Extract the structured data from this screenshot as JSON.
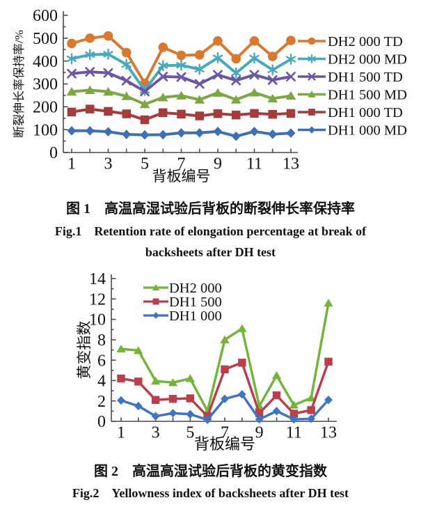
{
  "page": {
    "background": "#ffffff",
    "axis_color": "#4a4a4a",
    "text_color": "#111111"
  },
  "captions": {
    "fig1_zh": "图 1　高温高湿试验后背板的断裂伸长率保持率",
    "fig1_en1": "Fig.1　Retention rate of elongation percentage at break of",
    "fig1_en2": "backsheets after DH test",
    "fig2_zh": "图 2　高温高湿试验后背板的黄变指数",
    "fig2_en": "Fig.2　Yellowness index of backsheets after DH test"
  },
  "chart_data": [
    {
      "type": "line",
      "title": "",
      "xlabel": "背板编号",
      "ylabel": "断裂伸长率保持率/%",
      "x": [
        1,
        2,
        3,
        4,
        5,
        6,
        7,
        8,
        9,
        10,
        11,
        12,
        13
      ],
      "xtick_labels": [
        1,
        3,
        5,
        7,
        9,
        11,
        13
      ],
      "ylim": [
        0,
        600
      ],
      "yticks": [
        0,
        100,
        200,
        300,
        400,
        500,
        600
      ],
      "y_minor_step": 50,
      "grid": false,
      "legend_position": "right-outside",
      "series": [
        {
          "name": "DH2 000 TD",
          "color": "#D9782F",
          "marker": "circle",
          "values": [
            477,
            500,
            510,
            437,
            303,
            460,
            425,
            427,
            488,
            410,
            488,
            420,
            490
          ]
        },
        {
          "name": "DH2 000 MD",
          "color": "#4AA9B9",
          "marker": "asterisk",
          "values": [
            410,
            428,
            430,
            385,
            272,
            380,
            382,
            364,
            414,
            348,
            413,
            361,
            408
          ]
        },
        {
          "name": "DH1 500 TD",
          "color": "#6C55A3",
          "marker": "x",
          "values": [
            345,
            353,
            348,
            314,
            267,
            332,
            330,
            300,
            340,
            315,
            340,
            317,
            332
          ]
        },
        {
          "name": "DH1 500 MD",
          "color": "#7BA844",
          "marker": "triangle",
          "values": [
            266,
            273,
            266,
            246,
            211,
            241,
            249,
            231,
            261,
            231,
            262,
            236,
            248
          ]
        },
        {
          "name": "DH1 000 TD",
          "color": "#A33C3C",
          "marker": "square",
          "values": [
            177,
            190,
            180,
            169,
            143,
            174,
            168,
            160,
            170,
            164,
            171,
            167,
            171
          ]
        },
        {
          "name": "DH1 000 MD",
          "color": "#3E6FB0",
          "marker": "diamond",
          "values": [
            95,
            95,
            91,
            79,
            77,
            78,
            86,
            86,
            92,
            71,
            92,
            80,
            85
          ]
        }
      ]
    },
    {
      "type": "line",
      "title": "",
      "xlabel": "背板编号",
      "ylabel": "黄变指数",
      "x": [
        1,
        2,
        3,
        4,
        5,
        6,
        7,
        8,
        9,
        10,
        11,
        12,
        13
      ],
      "xtick_labels": [
        1,
        3,
        5,
        7,
        9,
        11,
        13
      ],
      "ylim": [
        0,
        14
      ],
      "yticks": [
        0,
        2,
        4,
        6,
        8,
        10,
        12,
        14
      ],
      "y_minor_step": 1,
      "grid": false,
      "legend_position": "top-left-inside",
      "series": [
        {
          "name": "DH2 000",
          "color": "#74B43C",
          "marker": "triangle",
          "values": [
            7.1,
            6.95,
            3.95,
            3.8,
            4.2,
            1.0,
            8.0,
            9.1,
            1.5,
            4.5,
            1.6,
            2.3,
            11.6
          ]
        },
        {
          "name": "DH1 500",
          "color": "#B83F4B",
          "marker": "square",
          "values": [
            4.2,
            3.9,
            2.1,
            2.2,
            2.25,
            0.5,
            5.1,
            5.75,
            0.8,
            2.55,
            0.75,
            1.1,
            5.85
          ]
        },
        {
          "name": "DH1 000",
          "color": "#3F75BE",
          "marker": "diamond",
          "values": [
            2.05,
            1.5,
            0.5,
            0.8,
            0.7,
            0.15,
            2.2,
            2.65,
            0.2,
            1.0,
            0.2,
            0.25,
            2.1
          ]
        }
      ]
    }
  ]
}
